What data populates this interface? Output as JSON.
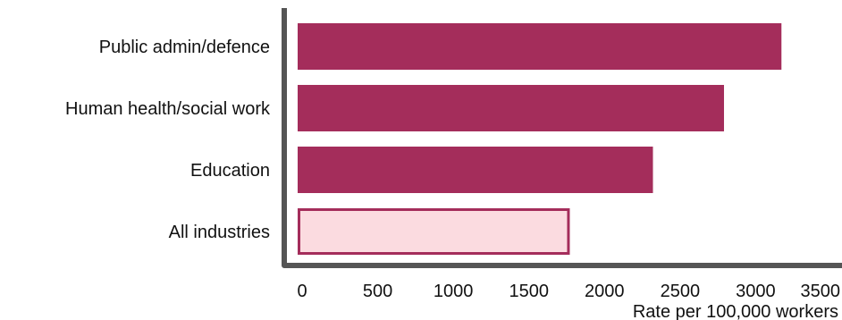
{
  "chart_data": {
    "type": "bar",
    "orientation": "horizontal",
    "categories": [
      "Public admin/defence",
      "Human health/social work",
      "Education",
      "All industries"
    ],
    "values": [
      3200,
      2820,
      2350,
      1800
    ],
    "xlabel": "Rate per 100,000 workers",
    "xlim": [
      0,
      3500
    ],
    "xticks": [
      0,
      500,
      1000,
      1500,
      2000,
      2500,
      3000,
      3500
    ],
    "grid": false,
    "legend": "none",
    "colors": {
      "highlight_fill": "#a42d5b",
      "baseline_fill": "#fbdbe0",
      "baseline_stroke": "#a42d5b",
      "axis": "#555555"
    },
    "styles": [
      "highlight",
      "highlight",
      "highlight",
      "baseline"
    ]
  }
}
